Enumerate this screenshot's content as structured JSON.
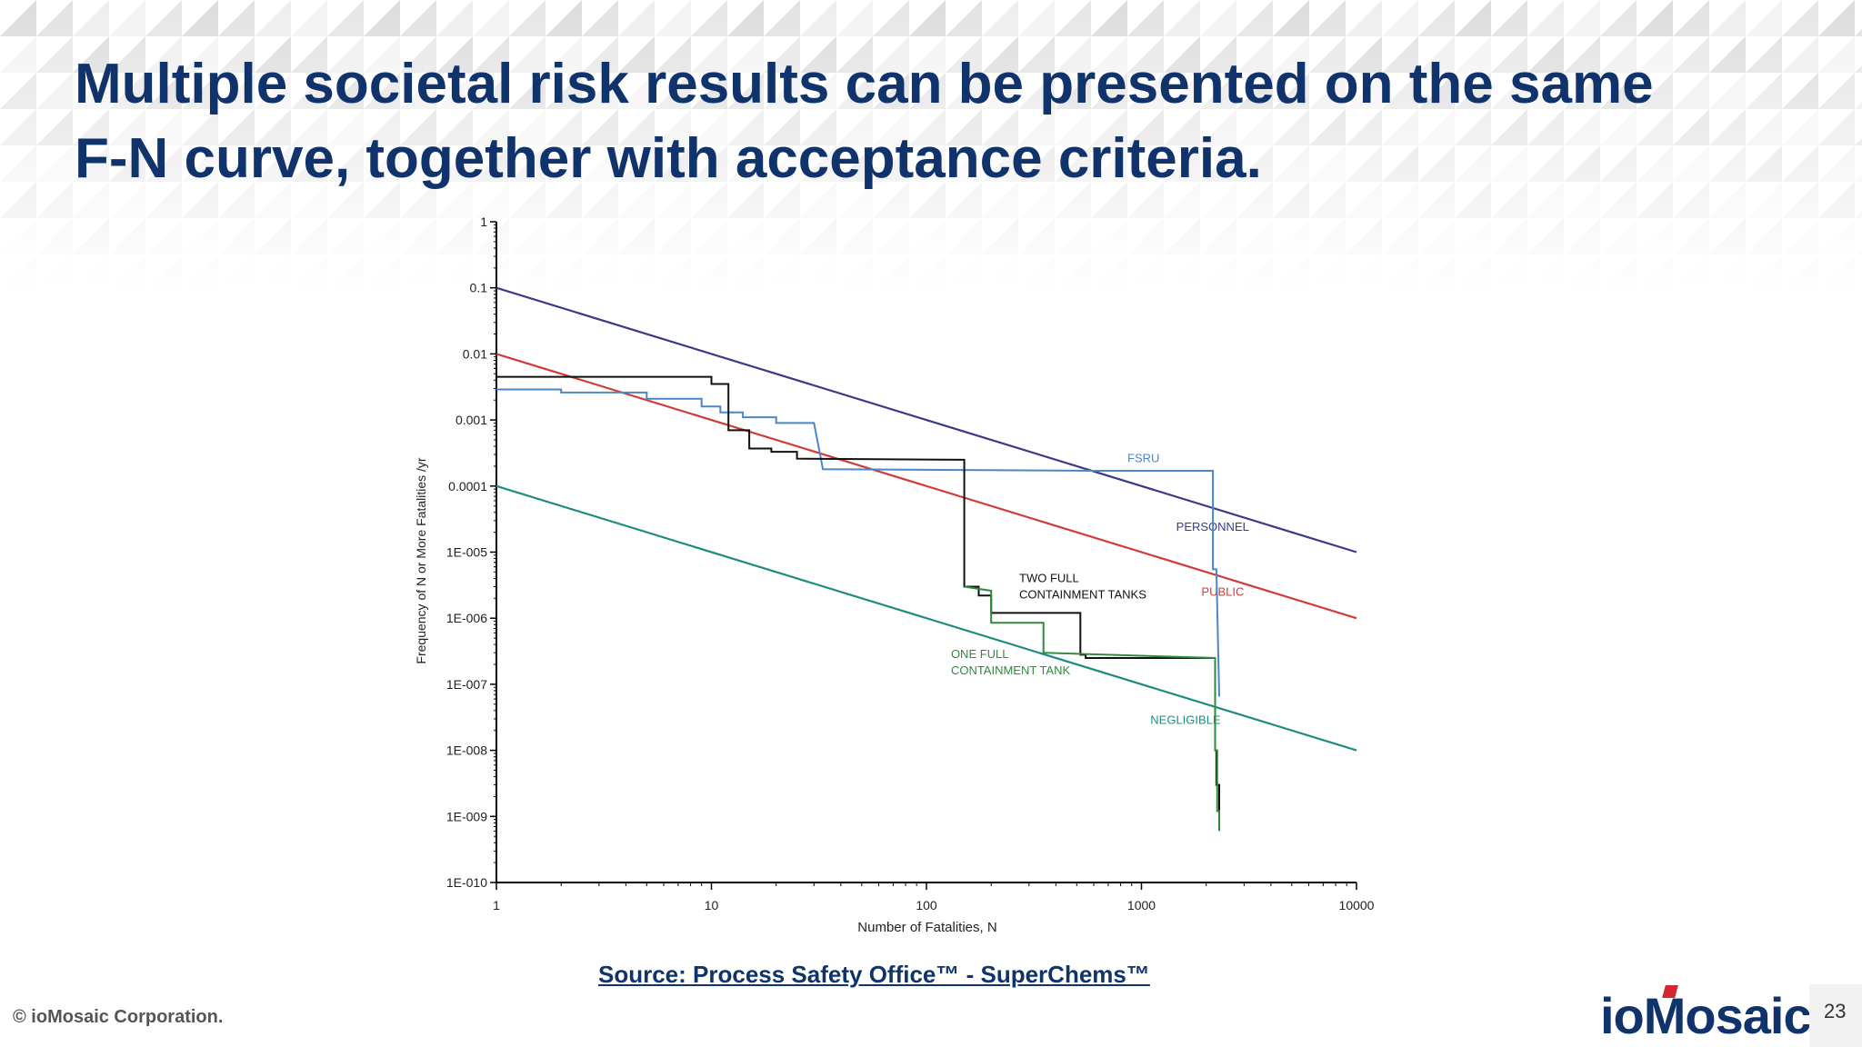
{
  "slide": {
    "title_line1": "Multiple societal risk results can be presented on the same",
    "title_line2": "F-N curve, together with acceptance criteria.",
    "source": "Source: Process Safety Office™ - SuperChems™",
    "copyright": "© ioMosaic Corporation.",
    "logo": "ioMosaic",
    "page_number": "23",
    "title_color": "#10336b"
  },
  "chart_data": {
    "type": "line",
    "xlabel": "Number of Fatalities, N",
    "ylabel": "Frequency of N or More Fatalities /yr",
    "xscale": "log",
    "yscale": "log",
    "xlim": [
      1,
      10000
    ],
    "ylim": [
      1e-10,
      1
    ],
    "x_ticks": [
      {
        "value": 1,
        "label": "1"
      },
      {
        "value": 10,
        "label": "10"
      },
      {
        "value": 100,
        "label": "100"
      },
      {
        "value": 1000,
        "label": "1000"
      },
      {
        "value": 10000,
        "label": "10000"
      }
    ],
    "y_ticks": [
      {
        "value": 1,
        "label": "1"
      },
      {
        "value": 0.1,
        "label": "0.1"
      },
      {
        "value": 0.01,
        "label": "0.01"
      },
      {
        "value": 0.001,
        "label": "0.001"
      },
      {
        "value": 0.0001,
        "label": "0.0001"
      },
      {
        "value": 1e-05,
        "label": "1E-005"
      },
      {
        "value": 1e-06,
        "label": "1E-006"
      },
      {
        "value": 1e-07,
        "label": "1E-007"
      },
      {
        "value": 1e-08,
        "label": "1E-008"
      },
      {
        "value": 1e-09,
        "label": "1E-009"
      },
      {
        "value": 1e-10,
        "label": "1E-010"
      }
    ],
    "grid": false,
    "series": [
      {
        "name": "PERSONNEL",
        "kind": "criterion",
        "color": "#3a3a86",
        "points": [
          [
            1,
            0.1
          ],
          [
            10000,
            1e-05
          ]
        ],
        "label_at": [
          1450,
          2.1e-05
        ]
      },
      {
        "name": "PUBLIC",
        "kind": "criterion",
        "color": "#d23b3b",
        "points": [
          [
            1,
            0.01
          ],
          [
            10000,
            1e-06
          ]
        ],
        "label_at": [
          1900,
          2.2e-06
        ]
      },
      {
        "name": "NEGLIGIBLE",
        "kind": "criterion",
        "color": "#1e8c82",
        "points": [
          [
            1,
            0.0001
          ],
          [
            10000,
            1e-08
          ]
        ],
        "label_at": [
          1100,
          2.5e-08
        ]
      },
      {
        "name": "FSRU",
        "kind": "result",
        "color": "#4a86c8",
        "points": [
          [
            1,
            0.0029
          ],
          [
            2,
            0.0029
          ],
          [
            2,
            0.0026
          ],
          [
            5,
            0.0026
          ],
          [
            5,
            0.0021
          ],
          [
            9,
            0.0021
          ],
          [
            9,
            0.0016
          ],
          [
            11,
            0.0016
          ],
          [
            11,
            0.0013
          ],
          [
            14,
            0.0013
          ],
          [
            14,
            0.0011
          ],
          [
            20,
            0.0011
          ],
          [
            20,
            0.0009
          ],
          [
            30,
            0.0009
          ],
          [
            33,
            0.00018
          ],
          [
            600,
            0.00017
          ],
          [
            2150,
            0.00017
          ],
          [
            2150,
            5.5e-06
          ],
          [
            2230,
            5.5e-06
          ],
          [
            2300,
            6.5e-08
          ]
        ],
        "label_at": [
          860,
          0.00023
        ]
      },
      {
        "name": "TWO FULL CONTAINMENT TANKS",
        "label_lines": [
          "TWO FULL",
          "CONTAINMENT TANKS"
        ],
        "kind": "result",
        "color": "#111111",
        "points": [
          [
            1,
            0.0045
          ],
          [
            10,
            0.0045
          ],
          [
            10,
            0.0035
          ],
          [
            12,
            0.0035
          ],
          [
            12,
            0.0007
          ],
          [
            15,
            0.0007
          ],
          [
            15,
            0.00037
          ],
          [
            19,
            0.00037
          ],
          [
            19,
            0.00033
          ],
          [
            25,
            0.00033
          ],
          [
            25,
            0.00026
          ],
          [
            150,
            0.00025
          ],
          [
            150,
            3e-06
          ],
          [
            175,
            3e-06
          ],
          [
            175,
            2.2e-06
          ],
          [
            200,
            2.2e-06
          ],
          [
            200,
            1.2e-06
          ],
          [
            520,
            1.2e-06
          ],
          [
            520,
            2.8e-07
          ],
          [
            550,
            2.8e-07
          ],
          [
            550,
            2.5e-07
          ],
          [
            2200,
            2.5e-07
          ],
          [
            2200,
            1e-08
          ],
          [
            2230,
            1e-08
          ],
          [
            2230,
            3e-09
          ],
          [
            2300,
            3e-09
          ],
          [
            2300,
            1e-09
          ]
        ],
        "label_at": [
          270,
          3.5e-06
        ]
      },
      {
        "name": "ONE FULL CONTAINMENT TANK",
        "label_lines": [
          "ONE FULL",
          "CONTAINMENT TANK"
        ],
        "kind": "result",
        "color": "#2f8a3e",
        "points": [
          [
            150,
            3e-06
          ],
          [
            200,
            2.6e-06
          ],
          [
            200,
            8.5e-07
          ],
          [
            350,
            8.5e-07
          ],
          [
            350,
            3e-07
          ],
          [
            2200,
            2.5e-07
          ],
          [
            2200,
            1e-08
          ],
          [
            2250,
            1e-08
          ],
          [
            2250,
            1.2e-09
          ],
          [
            2300,
            1.2e-09
          ],
          [
            2300,
            6e-10
          ]
        ],
        "label_at": [
          130,
          2.5e-07
        ]
      }
    ]
  }
}
